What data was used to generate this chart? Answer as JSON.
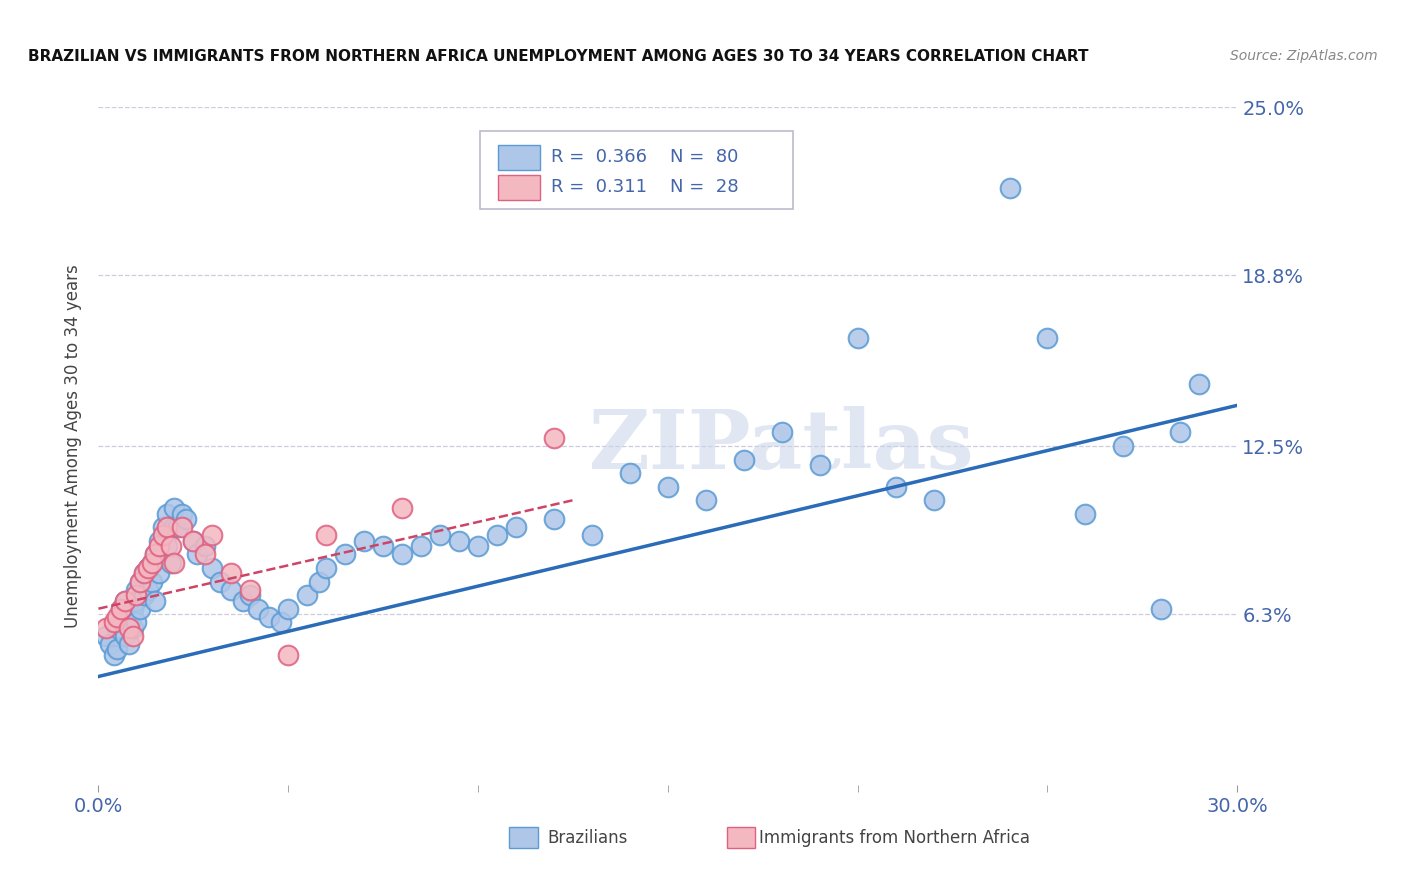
{
  "title": "BRAZILIAN VS IMMIGRANTS FROM NORTHERN AFRICA UNEMPLOYMENT AMONG AGES 30 TO 34 YEARS CORRELATION CHART",
  "source": "Source: ZipAtlas.com",
  "ylabel": "Unemployment Among Ages 30 to 34 years",
  "xmin": 0.0,
  "xmax": 0.3,
  "ymin": 0.0,
  "ymax": 0.25,
  "ytick_vals": [
    0.063,
    0.125,
    0.188,
    0.25
  ],
  "ytick_labels": [
    "6.3%",
    "12.5%",
    "18.8%",
    "25.0%"
  ],
  "xtick_labels": [
    "0.0%",
    "30.0%"
  ],
  "watermark": "ZIPatlas",
  "legend_R1": "0.366",
  "legend_N1": "80",
  "legend_R2": "0.311",
  "legend_N2": "28",
  "brazil_color": "#aec6e8",
  "brazil_edge": "#5b9bd5",
  "nafr_color": "#f4b8c1",
  "nafr_edge": "#e06080",
  "trend_brazil_color": "#2b6cb8",
  "trend_nafr_color": "#cc4466",
  "title_color": "#111111",
  "source_color": "#888888",
  "axis_color": "#4466aa",
  "tick_color": "#666666",
  "grid_color": "#ccccdd",
  "brazil_seed_x": [
    0.002,
    0.003,
    0.004,
    0.005,
    0.005,
    0.006,
    0.006,
    0.007,
    0.007,
    0.008,
    0.008,
    0.009,
    0.009,
    0.01,
    0.01,
    0.01,
    0.011,
    0.011,
    0.012,
    0.012,
    0.013,
    0.013,
    0.014,
    0.014,
    0.015,
    0.015,
    0.016,
    0.016,
    0.017,
    0.018,
    0.018,
    0.019,
    0.02,
    0.02,
    0.021,
    0.022,
    0.023,
    0.025,
    0.026,
    0.028,
    0.03,
    0.032,
    0.035,
    0.038,
    0.04,
    0.042,
    0.045,
    0.048,
    0.05,
    0.055,
    0.058,
    0.06,
    0.065,
    0.07,
    0.075,
    0.08,
    0.085,
    0.09,
    0.095,
    0.1,
    0.105,
    0.11,
    0.12,
    0.13,
    0.14,
    0.15,
    0.16,
    0.17,
    0.18,
    0.19,
    0.2,
    0.21,
    0.22,
    0.24,
    0.25,
    0.26,
    0.27,
    0.28,
    0.285,
    0.29
  ],
  "brazil_seed_y": [
    0.055,
    0.052,
    0.048,
    0.058,
    0.05,
    0.065,
    0.06,
    0.068,
    0.055,
    0.06,
    0.052,
    0.065,
    0.058,
    0.072,
    0.068,
    0.06,
    0.075,
    0.065,
    0.078,
    0.07,
    0.072,
    0.08,
    0.082,
    0.075,
    0.085,
    0.068,
    0.09,
    0.078,
    0.095,
    0.1,
    0.088,
    0.082,
    0.095,
    0.102,
    0.095,
    0.1,
    0.098,
    0.09,
    0.085,
    0.088,
    0.08,
    0.075,
    0.072,
    0.068,
    0.07,
    0.065,
    0.062,
    0.06,
    0.065,
    0.07,
    0.075,
    0.08,
    0.085,
    0.09,
    0.088,
    0.085,
    0.088,
    0.092,
    0.09,
    0.088,
    0.092,
    0.095,
    0.098,
    0.092,
    0.115,
    0.11,
    0.105,
    0.12,
    0.13,
    0.118,
    0.165,
    0.11,
    0.105,
    0.22,
    0.165,
    0.1,
    0.125,
    0.065,
    0.13,
    0.148
  ],
  "nafr_seed_x": [
    0.002,
    0.004,
    0.005,
    0.006,
    0.007,
    0.008,
    0.009,
    0.01,
    0.011,
    0.012,
    0.013,
    0.014,
    0.015,
    0.016,
    0.017,
    0.018,
    0.019,
    0.02,
    0.022,
    0.025,
    0.028,
    0.03,
    0.035,
    0.04,
    0.05,
    0.06,
    0.08,
    0.12
  ],
  "nafr_seed_y": [
    0.058,
    0.06,
    0.062,
    0.065,
    0.068,
    0.058,
    0.055,
    0.07,
    0.075,
    0.078,
    0.08,
    0.082,
    0.085,
    0.088,
    0.092,
    0.095,
    0.088,
    0.082,
    0.095,
    0.09,
    0.085,
    0.092,
    0.078,
    0.072,
    0.048,
    0.092,
    0.102,
    0.128
  ]
}
